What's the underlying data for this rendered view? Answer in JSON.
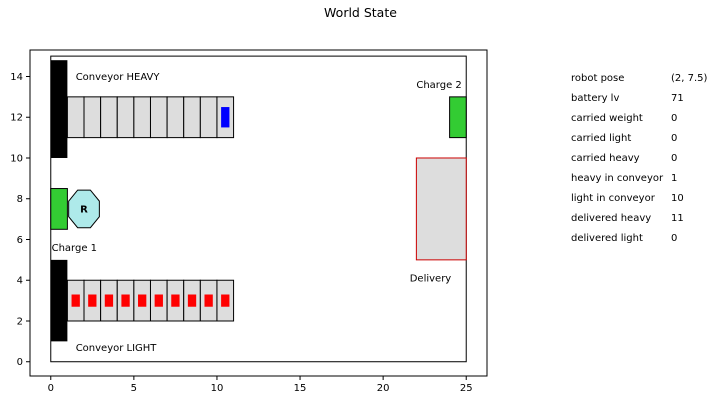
{
  "figure": {
    "title": "World State"
  },
  "scene": {
    "labels": {
      "conveyor_heavy": "Conveyor HEAVY",
      "conveyor_light": "Conveyor LIGHT",
      "charge_1": "Charge 1",
      "charge_2": "Charge 2",
      "delivery": "Delivery",
      "robot": "R"
    },
    "axes": {
      "x_ticks": [
        0,
        5,
        10,
        15,
        20,
        25
      ],
      "y_ticks": [
        0,
        2,
        4,
        6,
        8,
        10,
        12,
        14
      ],
      "xlim": [
        -1.25,
        26.25
      ],
      "ylim": [
        -0.7,
        15.3
      ]
    },
    "world": {
      "x": [
        0,
        25
      ],
      "y": [
        0,
        15
      ]
    },
    "colors": {
      "wall": "#000000",
      "conveyor_slot": "#dddddd",
      "charger": "#33cc33",
      "robot": "#aeeaea",
      "heavy_item": "#0000ff",
      "light_item": "#ff0000",
      "delivery_fill": "#dddddd",
      "delivery_border": "#cc0000"
    },
    "heavy_conveyor": {
      "y_range": [
        11,
        13
      ],
      "slots": 10,
      "items_at_slots": [
        10
      ]
    },
    "light_conveyor": {
      "y_range": [
        2,
        4
      ],
      "slots": 10,
      "items_at_slots": [
        1,
        2,
        3,
        4,
        5,
        6,
        7,
        8,
        9,
        10
      ]
    },
    "robot_pose": [
      2,
      7.5
    ],
    "charge_1_zone": {
      "x": [
        0,
        1
      ],
      "y": [
        6.5,
        8.5
      ]
    },
    "charge_2_zone": {
      "x": [
        24,
        25
      ],
      "y": [
        11,
        13
      ]
    },
    "delivery_zone": {
      "x": [
        22,
        25
      ],
      "y": [
        5,
        10
      ]
    }
  },
  "state": [
    {
      "key": "robot pose",
      "value": "(2, 7.5)"
    },
    {
      "key": "battery lv",
      "value": "71"
    },
    {
      "key": "carried weight",
      "value": "0"
    },
    {
      "key": "carried light",
      "value": "0"
    },
    {
      "key": "carried heavy",
      "value": "0"
    },
    {
      "key": "heavy in conveyor",
      "value": "1"
    },
    {
      "key": "light in conveyor",
      "value": "10"
    },
    {
      "key": "delivered heavy",
      "value": "11"
    },
    {
      "key": "delivered light",
      "value": "0"
    }
  ]
}
